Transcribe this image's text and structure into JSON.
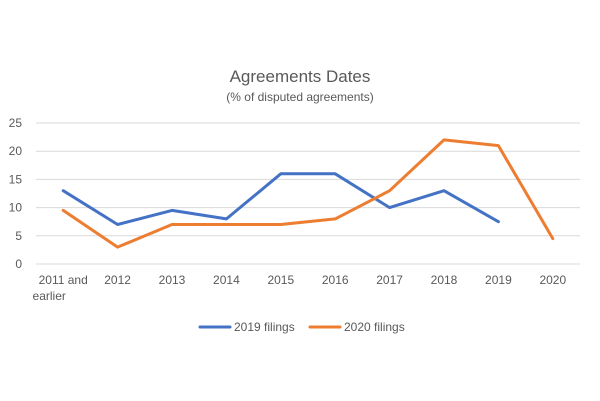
{
  "chart_data": {
    "type": "line",
    "title": "Agreements Dates",
    "subtitle": "(% of disputed agreements)",
    "xlabel": "",
    "ylabel": "",
    "categories": [
      "2011 and earlier",
      "2012",
      "2013",
      "2014",
      "2015",
      "2016",
      "2017",
      "2018",
      "2019",
      "2020"
    ],
    "ylim": [
      0,
      25
    ],
    "yticks": [
      0,
      5,
      10,
      15,
      20,
      25
    ],
    "grid": true,
    "legend_position": "bottom",
    "series": [
      {
        "name": "2019 filings",
        "color": "#4472c4",
        "values": [
          13,
          7,
          9.5,
          8,
          16,
          16,
          10,
          13,
          7.5,
          null
        ]
      },
      {
        "name": "2020 filings",
        "color": "#ed7d31",
        "values": [
          9.5,
          3,
          7,
          7,
          7,
          8,
          13,
          22,
          21,
          4.5
        ]
      }
    ]
  }
}
